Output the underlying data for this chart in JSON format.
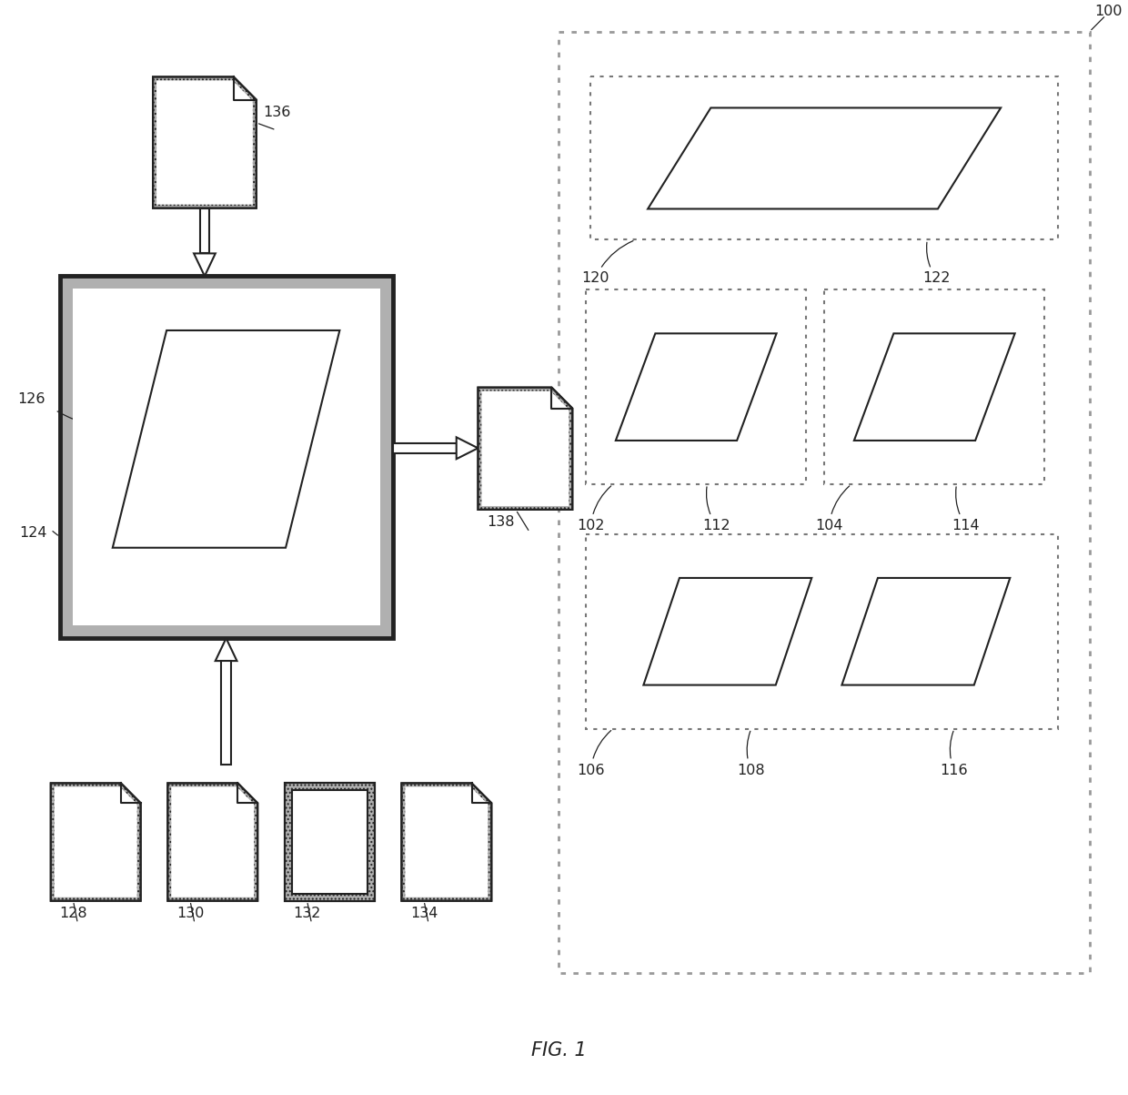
{
  "bg_color": "#ffffff",
  "lc": "#333333",
  "fig_label": "FIG. 1",
  "fig_label_fontsize": 15,
  "ref_fontsize": 11.5
}
